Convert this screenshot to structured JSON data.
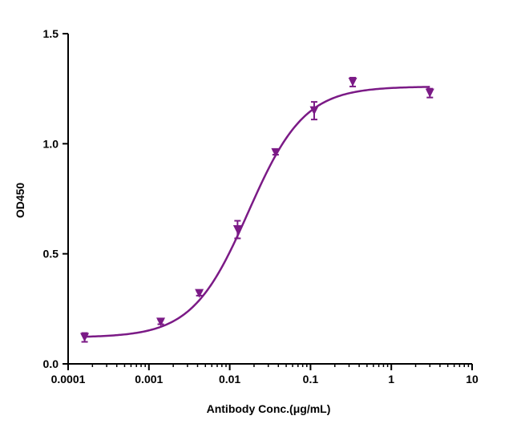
{
  "chart_data": {
    "type": "scatter",
    "xlabel": "Antibody Conc.(μg/mL)",
    "ylabel": "OD450",
    "x_scale": "log",
    "xlim": [
      0.0001,
      10
    ],
    "ylim": [
      0.0,
      1.5
    ],
    "x_ticks": [
      0.0001,
      0.001,
      0.01,
      0.1,
      1,
      10
    ],
    "x_tick_labels": [
      "0.0001",
      "0.001",
      "0.01",
      "0.1",
      "1",
      "10"
    ],
    "y_ticks": [
      0.0,
      0.5,
      1.0,
      1.5
    ],
    "y_tick_labels": [
      "0.0",
      "0.5",
      "1.0",
      "1.5"
    ],
    "grid": false,
    "color": "#7b1a86",
    "marker": "inverted-triangle",
    "series": [
      {
        "points": [
          {
            "x": 0.00016,
            "y": 0.12,
            "err": 0.02
          },
          {
            "x": 0.0014,
            "y": 0.19,
            "err": 0.01
          },
          {
            "x": 0.0042,
            "y": 0.32,
            "err": 0.01
          },
          {
            "x": 0.0125,
            "y": 0.61,
            "err": 0.04
          },
          {
            "x": 0.037,
            "y": 0.96,
            "err": 0.01
          },
          {
            "x": 0.111,
            "y": 1.15,
            "err": 0.04
          },
          {
            "x": 0.333,
            "y": 1.28,
            "err": 0.02
          },
          {
            "x": 3.0,
            "y": 1.23,
            "err": 0.02
          }
        ],
        "fit": {
          "bottom": 0.12,
          "top": 1.26,
          "ec50": 0.017,
          "hill": 1.25
        }
      }
    ]
  }
}
